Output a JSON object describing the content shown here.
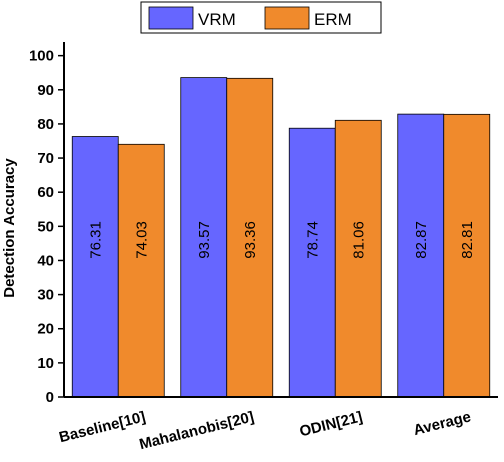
{
  "chart_data": {
    "type": "bar",
    "ylabel": "Detection Accuracy",
    "xlabel": "",
    "categories": [
      "Baseline[10]",
      "Mahalanobis[20]",
      "ODIN[21]",
      "Average"
    ],
    "series": [
      {
        "name": "VRM",
        "color": "#6666ff",
        "values": [
          76.31,
          93.57,
          78.74,
          82.87
        ]
      },
      {
        "name": "ERM",
        "color": "#f08a2c",
        "values": [
          74.03,
          93.36,
          81.06,
          82.81
        ]
      }
    ],
    "yticks": [
      "0",
      "10",
      "20",
      "30",
      "40",
      "50",
      "60",
      "70",
      "80",
      "90",
      "100"
    ],
    "ylim": [
      0,
      104
    ],
    "grid": false,
    "legend": "top-center",
    "data_labels": "rotated-inside-bar"
  }
}
